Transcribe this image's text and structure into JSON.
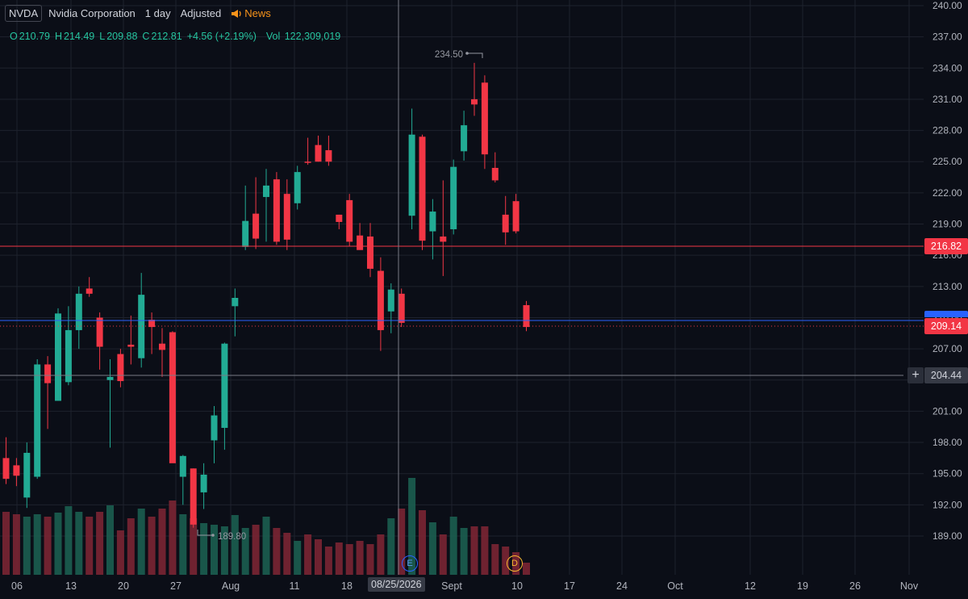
{
  "header": {
    "symbol": "NVDA",
    "company": "Nvidia Corporation",
    "interval": "1 day",
    "adjustment": "Adjusted",
    "news_label": "News"
  },
  "ohlc": {
    "o_label": "O",
    "o": "210.79",
    "h_label": "H",
    "h": "214.49",
    "l_label": "L",
    "l": "209.88",
    "c_label": "C",
    "c": "212.81",
    "change": "+4.56 (+2.19%)",
    "vol_label": "Vol",
    "vol": "122,309,019"
  },
  "price_labels": {
    "red_line": "216.82",
    "current": "209.14",
    "crosshair": "204.44"
  },
  "crosshair_date": "08/25/2026",
  "markers": {
    "earnings": "E",
    "dividend": "D"
  },
  "colors": {
    "up": "#22ab94",
    "down": "#f23645",
    "bg": "#0b0e17",
    "grid": "#1e222d",
    "text": "#d1d4dc",
    "blue": "#2962ff",
    "news": "#f7931a"
  },
  "chart_data": {
    "type": "candlestick",
    "ylim": [
      188,
      240
    ],
    "y_ticks": [
      "240.00",
      "237.00",
      "234.00",
      "231.00",
      "228.00",
      "225.00",
      "222.00",
      "219.00",
      "216.00",
      "213.00",
      "210.00",
      "207.00",
      "204.00",
      "201.00",
      "198.00",
      "195.00",
      "192.00",
      "189.00"
    ],
    "x_ticks": [
      "06",
      "13",
      "20",
      "27",
      "Aug",
      "11",
      "18",
      "Sept",
      "10",
      "17",
      "24",
      "Oct",
      "12",
      "19",
      "26",
      "Nov"
    ],
    "high_annotation": "234.50",
    "low_annotation": "189.80",
    "candles": [
      {
        "o": 196.5,
        "h": 198.5,
        "l": 194.0,
        "c": 194.5
      },
      {
        "o": 195.8,
        "h": 196.5,
        "l": 193.8,
        "c": 194.8
      },
      {
        "o": 192.7,
        "h": 198.0,
        "l": 191.7,
        "c": 197.0
      },
      {
        "o": 194.7,
        "h": 206.0,
        "l": 194.5,
        "c": 205.5
      },
      {
        "o": 205.5,
        "h": 206.3,
        "l": 199.3,
        "c": 203.7
      },
      {
        "o": 202.0,
        "h": 210.9,
        "l": 202.0,
        "c": 210.4
      },
      {
        "o": 203.8,
        "h": 211.1,
        "l": 203.5,
        "c": 208.8
      },
      {
        "o": 208.8,
        "h": 213.0,
        "l": 207.0,
        "c": 212.3
      },
      {
        "o": 212.8,
        "h": 213.9,
        "l": 212.0,
        "c": 212.3
      },
      {
        "o": 210.0,
        "h": 210.5,
        "l": 205.0,
        "c": 207.2
      },
      {
        "o": 204.0,
        "h": 206.0,
        "l": 197.5,
        "c": 204.3
      },
      {
        "o": 206.5,
        "h": 207.0,
        "l": 203.3,
        "c": 203.9
      },
      {
        "o": 207.4,
        "h": 210.2,
        "l": 205.5,
        "c": 207.2
      },
      {
        "o": 206.1,
        "h": 214.3,
        "l": 205.2,
        "c": 212.2
      },
      {
        "o": 209.8,
        "h": 210.5,
        "l": 206.5,
        "c": 209.1
      },
      {
        "o": 207.5,
        "h": 209.0,
        "l": 204.3,
        "c": 206.9
      },
      {
        "o": 208.6,
        "h": 208.7,
        "l": 196.5,
        "c": 196.0
      },
      {
        "o": 194.7,
        "h": 196.8,
        "l": 192.0,
        "c": 196.7
      },
      {
        "o": 195.5,
        "h": 195.5,
        "l": 189.8,
        "c": 190.1
      },
      {
        "o": 193.2,
        "h": 196.0,
        "l": 191.6,
        "c": 194.9
      },
      {
        "o": 198.2,
        "h": 201.5,
        "l": 196.0,
        "c": 200.6
      },
      {
        "o": 199.4,
        "h": 207.6,
        "l": 197.3,
        "c": 207.5
      },
      {
        "o": 211.1,
        "h": 212.8,
        "l": 208.2,
        "c": 211.9
      },
      {
        "o": 216.8,
        "h": 222.7,
        "l": 216.5,
        "c": 219.3
      },
      {
        "o": 220.0,
        "h": 223.5,
        "l": 216.6,
        "c": 217.6
      },
      {
        "o": 221.6,
        "h": 224.3,
        "l": 217.3,
        "c": 222.7
      },
      {
        "o": 223.3,
        "h": 224.0,
        "l": 217.0,
        "c": 217.3
      },
      {
        "o": 221.9,
        "h": 223.3,
        "l": 216.5,
        "c": 217.5
      },
      {
        "o": 221.0,
        "h": 224.6,
        "l": 220.4,
        "c": 224.0
      },
      {
        "o": 225.0,
        "h": 227.3,
        "l": 224.7,
        "c": 224.9
      },
      {
        "o": 226.6,
        "h": 227.5,
        "l": 225.0,
        "c": 225.0
      },
      {
        "o": 226.1,
        "h": 227.5,
        "l": 224.6,
        "c": 225.0
      },
      {
        "o": 219.9,
        "h": 219.9,
        "l": 218.5,
        "c": 219.2
      },
      {
        "o": 221.3,
        "h": 221.9,
        "l": 216.9,
        "c": 217.3
      },
      {
        "o": 217.9,
        "h": 219.1,
        "l": 216.6,
        "c": 216.5
      },
      {
        "o": 217.8,
        "h": 219.1,
        "l": 213.9,
        "c": 214.7
      },
      {
        "o": 214.5,
        "h": 215.8,
        "l": 206.8,
        "c": 208.8
      },
      {
        "o": 210.6,
        "h": 213.3,
        "l": 208.5,
        "c": 212.7
      },
      {
        "o": 212.3,
        "h": 212.8,
        "l": 209.1,
        "c": 209.5
      },
      {
        "o": 219.8,
        "h": 230.1,
        "l": 218.5,
        "c": 227.6
      },
      {
        "o": 227.4,
        "h": 227.6,
        "l": 216.5,
        "c": 217.4
      },
      {
        "o": 218.3,
        "h": 221.4,
        "l": 215.6,
        "c": 220.2
      },
      {
        "o": 217.8,
        "h": 223.2,
        "l": 214.0,
        "c": 217.3
      },
      {
        "o": 218.5,
        "h": 225.2,
        "l": 218.0,
        "c": 224.5
      },
      {
        "o": 226.0,
        "h": 229.9,
        "l": 225.1,
        "c": 228.5
      },
      {
        "o": 231.0,
        "h": 234.5,
        "l": 229.4,
        "c": 230.5
      },
      {
        "o": 232.6,
        "h": 233.3,
        "l": 224.3,
        "c": 225.7
      },
      {
        "o": 224.4,
        "h": 225.9,
        "l": 223.0,
        "c": 223.2
      },
      {
        "o": 219.9,
        "h": 221.7,
        "l": 217.0,
        "c": 218.2
      },
      {
        "o": 221.2,
        "h": 221.9,
        "l": 218.1,
        "c": 218.3
      },
      {
        "o": 211.2,
        "h": 211.6,
        "l": 208.7,
        "c": 209.1
      }
    ],
    "volumes": [
      0.78,
      0.75,
      0.72,
      0.75,
      0.72,
      0.77,
      0.85,
      0.78,
      0.72,
      0.78,
      0.86,
      0.55,
      0.7,
      0.82,
      0.72,
      0.82,
      0.92,
      0.75,
      0.7,
      0.64,
      0.62,
      0.6,
      0.74,
      0.58,
      0.62,
      0.72,
      0.58,
      0.52,
      0.42,
      0.5,
      0.44,
      0.35,
      0.4,
      0.38,
      0.42,
      0.38,
      0.5,
      0.7,
      0.82,
      1.2,
      0.8,
      0.65,
      0.5,
      0.72,
      0.58,
      0.6,
      0.6,
      0.38,
      0.35,
      0.28,
      0.15
    ]
  }
}
